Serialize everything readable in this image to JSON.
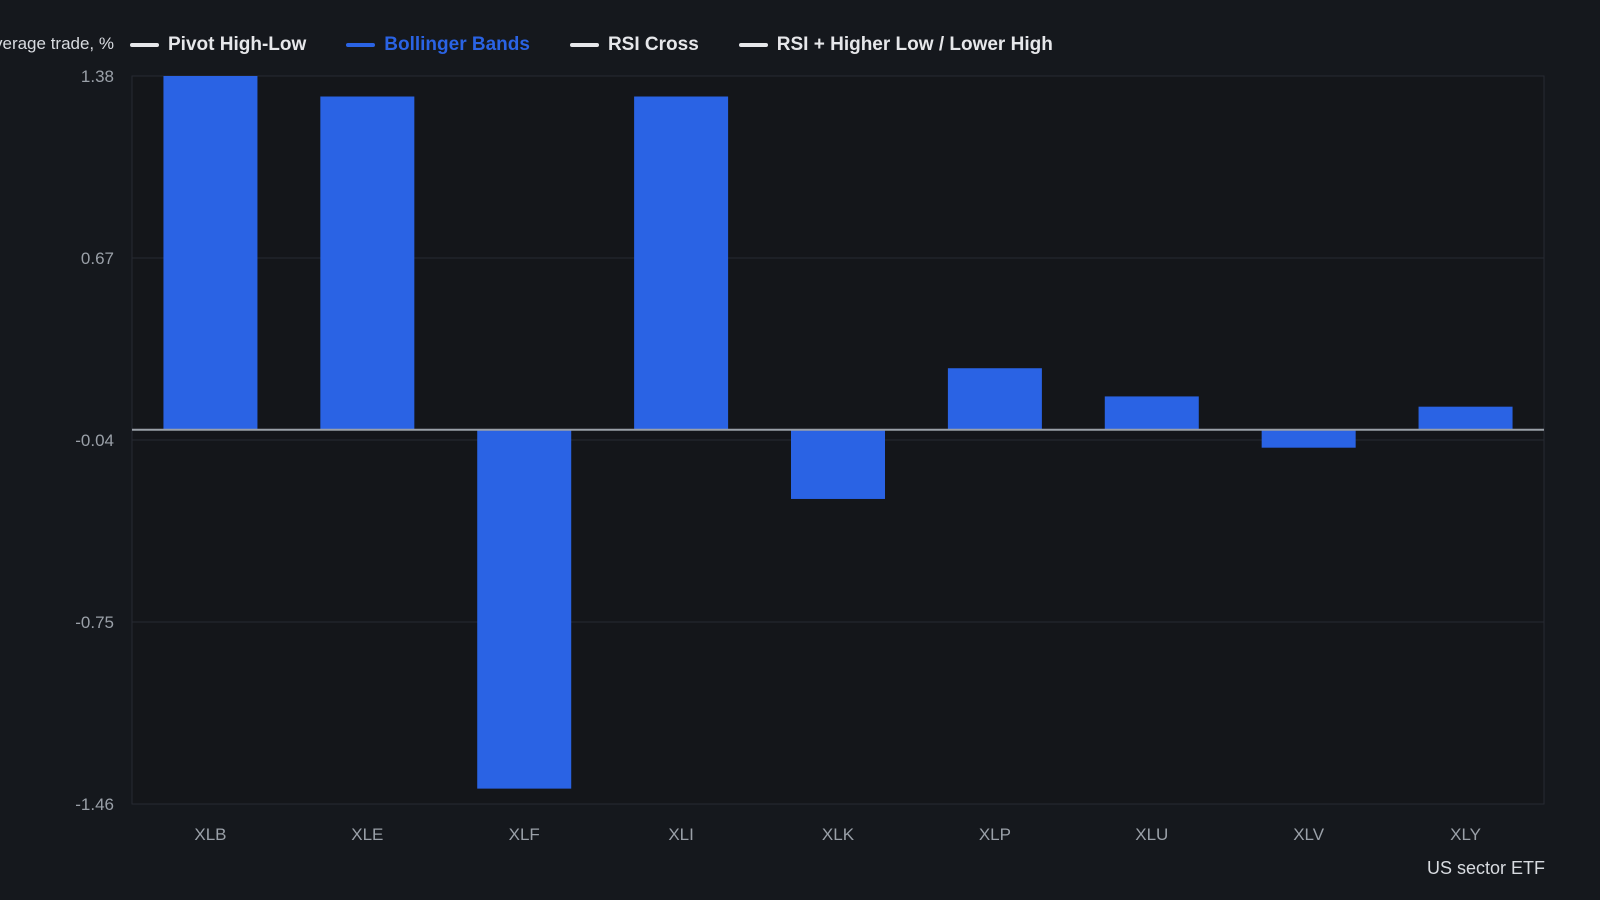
{
  "chart_data": {
    "type": "bar",
    "ylabel": "Average trade, %",
    "xlabel": "US sector ETF",
    "categories": [
      "XLB",
      "XLE",
      "XLF",
      "XLI",
      "XLK",
      "XLP",
      "XLU",
      "XLV",
      "XLY"
    ],
    "series": [
      {
        "name": "Bollinger Bands",
        "values": [
          1.38,
          1.3,
          -1.4,
          1.3,
          -0.27,
          0.24,
          0.13,
          -0.07,
          0.09
        ]
      }
    ],
    "legend": [
      {
        "name": "Pivot High-Low",
        "color": "#e6e7ea",
        "active": false
      },
      {
        "name": "Bollinger Bands",
        "color": "#2a63e4",
        "active": true
      },
      {
        "name": "RSI Cross",
        "color": "#e6e7ea",
        "active": false
      },
      {
        "name": "RSI + Higher Low / Lower High",
        "color": "#e6e7ea",
        "active": false
      }
    ],
    "yticks": [
      1.38,
      0.67,
      -0.04,
      -0.75,
      -1.46
    ],
    "ytick_labels": [
      "1.38",
      "0.67",
      "-0.04",
      "-0.75",
      "-1.46"
    ],
    "ylim": [
      -1.46,
      1.38
    ],
    "grid": true,
    "legend_placement": "top-left",
    "colors": {
      "bar": "#2a63e4",
      "background": "#15181d",
      "grid": "#262a32",
      "zero_line": "#9aa0a8",
      "tick_text": "#9aa0a8"
    }
  }
}
